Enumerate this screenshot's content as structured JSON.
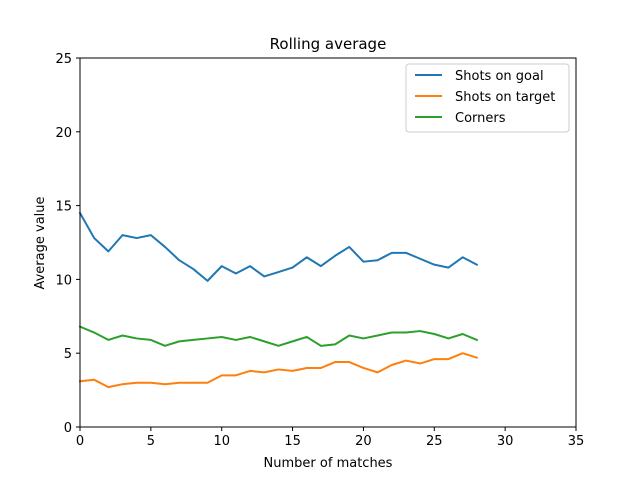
{
  "chart_data": {
    "type": "line",
    "title": "Rolling average",
    "xlabel": "Number of matches",
    "ylabel": "Average value",
    "xlim": [
      0,
      35
    ],
    "ylim": [
      0,
      25
    ],
    "xticks": [
      0,
      5,
      10,
      15,
      20,
      25,
      30,
      35
    ],
    "yticks": [
      0,
      5,
      10,
      15,
      20,
      25
    ],
    "grid": false,
    "legend_position": "top-right",
    "x": [
      0,
      1,
      2,
      3,
      4,
      5,
      6,
      7,
      8,
      9,
      10,
      11,
      12,
      13,
      14,
      15,
      16,
      17,
      18,
      19,
      20,
      21,
      22,
      23,
      24,
      25,
      26,
      27,
      28
    ],
    "series": [
      {
        "name": "Shots on goal",
        "color": "#1f77b4",
        "values": [
          14.5,
          12.8,
          11.9,
          13.0,
          12.8,
          13.0,
          12.2,
          11.3,
          10.7,
          9.9,
          10.9,
          10.4,
          10.9,
          10.2,
          10.5,
          10.8,
          11.5,
          10.9,
          11.6,
          12.2,
          11.2,
          11.3,
          11.8,
          11.8,
          11.4,
          11.0,
          10.8,
          11.5,
          11.0
        ]
      },
      {
        "name": "Shots on target",
        "color": "#ff7f0e",
        "values": [
          3.1,
          3.2,
          2.7,
          2.9,
          3.0,
          3.0,
          2.9,
          3.0,
          3.0,
          3.0,
          3.5,
          3.5,
          3.8,
          3.7,
          3.9,
          3.8,
          4.0,
          4.0,
          4.4,
          4.4,
          4.0,
          3.7,
          4.2,
          4.5,
          4.3,
          4.6,
          4.6,
          5.0,
          4.7
        ]
      },
      {
        "name": "Corners",
        "color": "#2ca02c",
        "values": [
          6.8,
          6.4,
          5.9,
          6.2,
          6.0,
          5.9,
          5.5,
          5.8,
          5.9,
          6.0,
          6.1,
          5.9,
          6.1,
          5.8,
          5.5,
          5.8,
          6.1,
          5.5,
          5.6,
          6.2,
          6.0,
          6.2,
          6.4,
          6.4,
          6.5,
          6.3,
          6.0,
          6.3,
          5.9
        ]
      }
    ]
  }
}
